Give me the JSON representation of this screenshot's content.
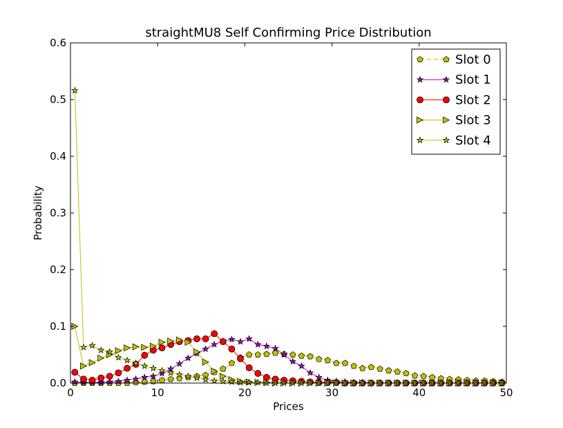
{
  "chart_data": {
    "type": "line",
    "title": "straightMU8 Self Confirming Price Distribution",
    "xlabel": "Prices",
    "ylabel": "Probability",
    "xlim": [
      0,
      50
    ],
    "ylim": [
      0,
      0.6
    ],
    "xticks": [
      0,
      10,
      20,
      30,
      40,
      50
    ],
    "xtick_labels": [
      "0",
      "10",
      "20",
      "30",
      "40",
      "50"
    ],
    "yticks": [
      0.0,
      0.1,
      0.2,
      0.3,
      0.4,
      0.5,
      0.6
    ],
    "ytick_labels": [
      "0.0",
      "0.1",
      "0.2",
      "0.3",
      "0.4",
      "0.5",
      "0.6"
    ],
    "grid": false,
    "legend_position": "top-right",
    "x": [
      0.5,
      1.5,
      2.5,
      3.5,
      4.5,
      5.5,
      6.5,
      7.5,
      8.5,
      9.5,
      10.5,
      11.5,
      12.5,
      13.5,
      14.5,
      15.5,
      16.5,
      17.5,
      18.5,
      19.5,
      20.5,
      21.5,
      22.5,
      23.5,
      24.5,
      25.5,
      26.5,
      27.5,
      28.5,
      29.5,
      30.5,
      31.5,
      32.5,
      33.5,
      34.5,
      35.5,
      36.5,
      37.5,
      38.5,
      39.5,
      40.5,
      41.5,
      42.5,
      43.5,
      44.5,
      45.5,
      46.5,
      47.5,
      48.5,
      49.5
    ],
    "series": [
      {
        "name": "Slot 0",
        "color": "#bfbf00",
        "line_color": "#bfbf00",
        "line_style": "dashed",
        "marker": "pentagon",
        "values": [
          0.0,
          0.0,
          0.0,
          0.0,
          0.0,
          0.0,
          0.0,
          0.001,
          0.002,
          0.003,
          0.005,
          0.007,
          0.008,
          0.01,
          0.012,
          0.014,
          0.019,
          0.025,
          0.035,
          0.045,
          0.05,
          0.05,
          0.051,
          0.053,
          0.051,
          0.05,
          0.048,
          0.047,
          0.042,
          0.04,
          0.035,
          0.035,
          0.03,
          0.026,
          0.028,
          0.025,
          0.022,
          0.02,
          0.017,
          0.013,
          0.012,
          0.01,
          0.008,
          0.007,
          0.006,
          0.005,
          0.004,
          0.004,
          0.003,
          0.002
        ]
      },
      {
        "name": "Slot 1",
        "color": "#9f00bf",
        "line_color": "#bf00bf",
        "line_style": "solid",
        "marker": "star",
        "values": [
          0.002,
          0.001,
          0.001,
          0.001,
          0.002,
          0.003,
          0.005,
          0.007,
          0.01,
          0.012,
          0.017,
          0.025,
          0.034,
          0.044,
          0.052,
          0.06,
          0.068,
          0.074,
          0.077,
          0.073,
          0.078,
          0.068,
          0.065,
          0.061,
          0.05,
          0.038,
          0.03,
          0.018,
          0.01,
          0.005,
          0.003,
          0.002,
          0.001,
          0.001,
          0.0,
          0.0,
          0.0,
          0.0,
          0.0,
          0.0,
          0.0,
          0.0,
          0.0,
          0.0,
          0.0,
          0.0,
          0.0,
          0.0,
          0.0,
          0.0
        ]
      },
      {
        "name": "Slot 2",
        "color": "#ff0000",
        "line_color": "#ff0000",
        "line_style": "solid",
        "marker": "circle",
        "values": [
          0.019,
          0.007,
          0.005,
          0.009,
          0.012,
          0.018,
          0.026,
          0.033,
          0.049,
          0.058,
          0.062,
          0.068,
          0.073,
          0.075,
          0.078,
          0.078,
          0.087,
          0.073,
          0.06,
          0.043,
          0.027,
          0.017,
          0.01,
          0.007,
          0.005,
          0.004,
          0.003,
          0.002,
          0.001,
          0.001,
          0.001,
          0.0,
          0.0,
          0.0,
          0.0,
          0.0,
          0.0,
          0.0,
          0.0,
          0.0,
          0.0,
          0.0,
          0.0,
          0.0,
          0.0,
          0.0,
          0.0,
          0.0,
          0.0,
          0.0
        ]
      },
      {
        "name": "Slot 3",
        "color": "#bfbf00",
        "line_color": "#bfbf00",
        "line_style": "solid",
        "marker": "triangle-right",
        "values": [
          0.1,
          0.03,
          0.036,
          0.044,
          0.05,
          0.057,
          0.062,
          0.064,
          0.063,
          0.065,
          0.072,
          0.074,
          0.076,
          0.072,
          0.055,
          0.037,
          0.021,
          0.012,
          0.006,
          0.003,
          0.002,
          0.001,
          0.001,
          0.0,
          0.0,
          0.0,
          0.0,
          0.0,
          0.0,
          0.0,
          0.0,
          0.0,
          0.0,
          0.0,
          0.0,
          0.0,
          0.0,
          0.0,
          0.0,
          0.0,
          0.0,
          0.0,
          0.0,
          0.0,
          0.0,
          0.0,
          0.0,
          0.0,
          0.0,
          0.0
        ]
      },
      {
        "name": "Slot 4",
        "color": "#bfbf00",
        "line_color": "#bfbf00",
        "line_style": "solid",
        "marker": "star",
        "values": [
          0.516,
          0.063,
          0.066,
          0.058,
          0.055,
          0.045,
          0.04,
          0.035,
          0.03,
          0.026,
          0.022,
          0.018,
          0.015,
          0.012,
          0.009,
          0.006,
          0.004,
          0.003,
          0.002,
          0.001,
          0.001,
          0.001,
          0.0,
          0.0,
          0.0,
          0.0,
          0.0,
          0.0,
          0.0,
          0.0,
          0.0,
          0.0,
          0.0,
          0.0,
          0.0,
          0.0,
          0.0,
          0.0,
          0.0,
          0.0,
          0.0,
          0.0,
          0.0,
          0.0,
          0.0,
          0.0,
          0.0,
          0.0,
          0.0,
          0.0
        ]
      }
    ]
  }
}
